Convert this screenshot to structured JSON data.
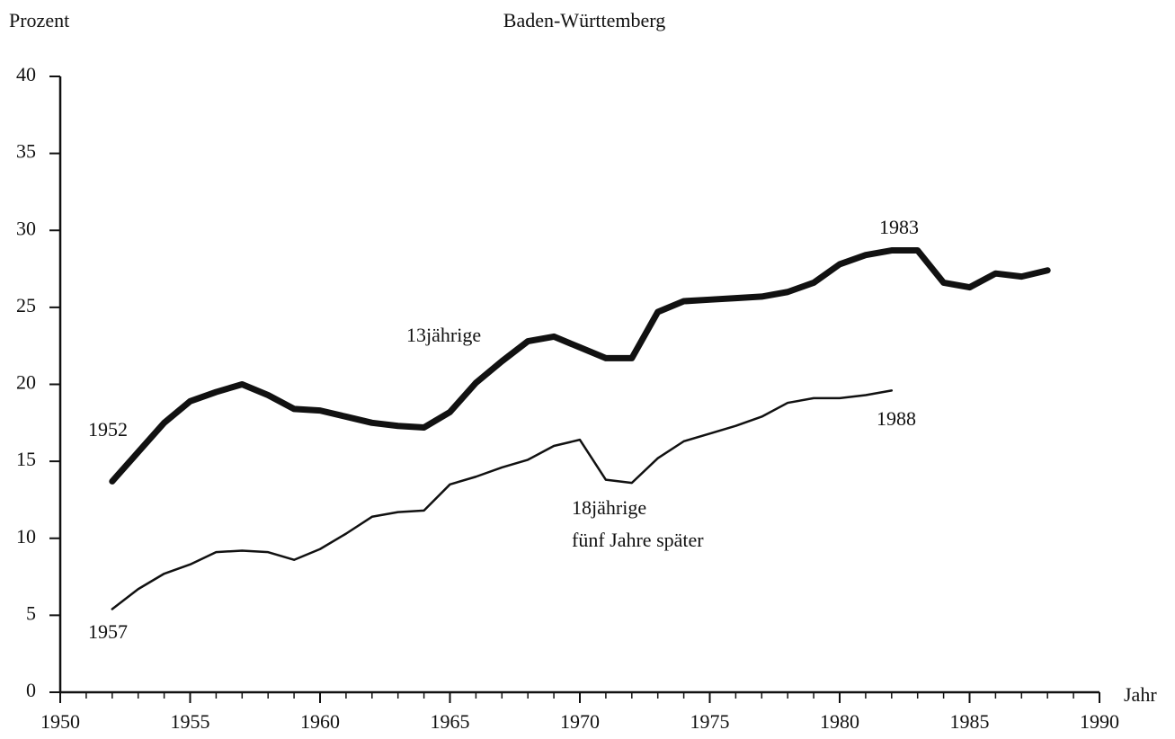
{
  "chart_data": {
    "type": "line",
    "title": "Baden-Württemberg",
    "ylabel": "Prozent",
    "xlabel": "Jahr",
    "series": [
      {
        "name": "13jährige",
        "color": "#111111",
        "width": 7,
        "x": [
          1952,
          1953,
          1954,
          1955,
          1956,
          1957,
          1958,
          1959,
          1960,
          1961,
          1962,
          1963,
          1964,
          1965,
          1966,
          1967,
          1968,
          1969,
          1970,
          1971,
          1972,
          1973,
          1974,
          1975,
          1976,
          1977,
          1978,
          1979,
          1980,
          1981,
          1982,
          1983,
          1984,
          1985,
          1986,
          1987,
          1988
        ],
        "values": [
          13.7,
          15.6,
          17.5,
          18.9,
          19.5,
          20.0,
          19.3,
          18.4,
          18.3,
          17.9,
          17.5,
          17.3,
          17.2,
          18.2,
          20.1,
          21.5,
          22.8,
          23.1,
          22.4,
          21.7,
          21.7,
          24.7,
          25.4,
          25.5,
          25.6,
          25.7,
          26.0,
          26.6,
          27.8,
          28.4,
          28.7,
          28.7,
          26.6,
          26.3,
          27.2,
          27.0,
          27.4
        ]
      },
      {
        "name": "18jährige fünf Jahre später",
        "color": "#111111",
        "width": 2.5,
        "x": [
          1952,
          1953,
          1954,
          1955,
          1956,
          1957,
          1958,
          1959,
          1960,
          1961,
          1962,
          1963,
          1964,
          1965,
          1966,
          1967,
          1968,
          1969,
          1970,
          1971,
          1972,
          1973,
          1974,
          1975,
          1976,
          1977,
          1978,
          1979,
          1980,
          1981,
          1982
        ],
        "values": [
          5.4,
          6.7,
          7.7,
          8.3,
          9.1,
          9.2,
          9.1,
          8.6,
          9.3,
          10.3,
          11.4,
          11.7,
          11.8,
          13.5,
          14.0,
          14.6,
          15.1,
          16.0,
          16.4,
          13.8,
          13.6,
          15.2,
          16.3,
          16.8,
          17.3,
          17.9,
          18.8,
          19.1,
          19.1,
          19.3,
          19.6
        ]
      }
    ],
    "annotations": [
      "1952",
      "1957",
      "13jährige",
      "18jährige",
      "fünf Jahre später",
      "1983",
      "1988"
    ],
    "xlim": [
      1950,
      1990
    ],
    "xticks": [
      1950,
      1955,
      1960,
      1965,
      1970,
      1975,
      1980,
      1985,
      1990
    ],
    "xminorticks": [
      1951,
      1952,
      1953,
      1954,
      1956,
      1957,
      1958,
      1959,
      1961,
      1962,
      1963,
      1964,
      1966,
      1967,
      1968,
      1969,
      1971,
      1972,
      1973,
      1974,
      1976,
      1977,
      1978,
      1979,
      1981,
      1982,
      1983,
      1984,
      1986,
      1987,
      1988,
      1989
    ],
    "ylim": [
      0,
      40
    ],
    "yticks": [
      0,
      5,
      10,
      15,
      20,
      25,
      30,
      35,
      40
    ],
    "grid": false,
    "legend": false
  }
}
